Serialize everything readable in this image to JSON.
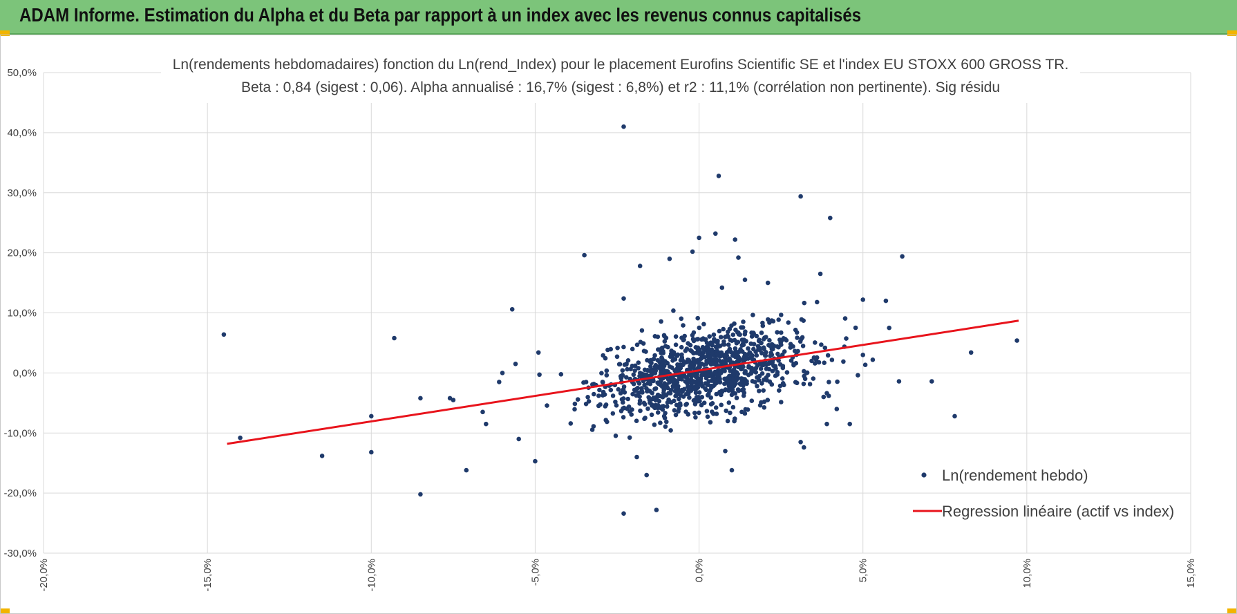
{
  "header": {
    "title": "ADAM Informe. Estimation du Alpha et du Beta par rapport à un index avec les revenus connus capitalisés"
  },
  "colors": {
    "header_bg": "#7cc47a",
    "points": "#1f3a6b",
    "regression": "#e8141c",
    "grid": "#d9d9d9"
  },
  "chart_data": {
    "type": "scatter",
    "title": "Ln(rendements hebdomadaires) fonction du Ln(rend_Index) pour le placement Eurofins Scientific SE et l'index EU STOXX 600 GROSS TR.",
    "subtitle": "Beta : 0,84 (sigest : 0,06).  Alpha annualisé : 16,7% (sigest : 6,8%) et r2 : 11,1% (corrélation non pertinente). Sig résidu",
    "xlim": [
      -0.2,
      0.15
    ],
    "ylim": [
      -0.3,
      0.5
    ],
    "x_ticks": [
      -0.2,
      -0.15,
      -0.1,
      -0.05,
      0.0,
      0.05,
      0.1,
      0.15
    ],
    "x_tick_labels": [
      "-20,0%",
      "-15,0%",
      "-10,0%",
      "-5,0%",
      "0,0%",
      "5,0%",
      "10,0%",
      "15,0%"
    ],
    "y_ticks": [
      -0.3,
      -0.2,
      -0.1,
      0.0,
      0.1,
      0.2,
      0.3,
      0.4,
      0.5
    ],
    "y_tick_labels": [
      "-30,0%",
      "-20,0%",
      "-10,0%",
      "0,0%",
      "10,0%",
      "20,0%",
      "30,0%",
      "40,0%",
      "50,0%"
    ],
    "grid": true,
    "legend_position": "bottom-right",
    "legend": [
      "Ln(rendement hebdo)",
      "Regression linéaire (actif vs index)"
    ],
    "regression": {
      "name": "Regression linéaire (actif vs index)",
      "x": [
        -0.144,
        0.0975
      ],
      "y": [
        -0.118,
        0.087
      ]
    },
    "series": [
      {
        "name": "Ln(rendement hebdo)",
        "cluster": {
          "count": 1050,
          "seed": 7,
          "x_mean": 0.002,
          "x_std": 0.016,
          "y_intercept": 0.003,
          "beta": 0.84,
          "resid_std": 0.034
        },
        "points": [
          [
            -0.145,
            0.064
          ],
          [
            -0.14,
            -0.108
          ],
          [
            -0.115,
            -0.138
          ],
          [
            -0.1,
            -0.072
          ],
          [
            -0.1,
            -0.132
          ],
          [
            -0.093,
            0.058
          ],
          [
            -0.085,
            -0.042
          ],
          [
            -0.085,
            -0.202
          ],
          [
            -0.076,
            -0.042
          ],
          [
            -0.075,
            -0.045
          ],
          [
            -0.071,
            -0.162
          ],
          [
            -0.066,
            -0.065
          ],
          [
            -0.065,
            -0.085
          ],
          [
            -0.061,
            -0.015
          ],
          [
            -0.06,
            0.0
          ],
          [
            -0.057,
            0.106
          ],
          [
            -0.056,
            0.015
          ],
          [
            -0.055,
            -0.11
          ],
          [
            -0.05,
            -0.147
          ],
          [
            -0.049,
            0.034
          ],
          [
            -0.035,
            0.196
          ],
          [
            -0.023,
            0.41
          ],
          [
            -0.023,
            -0.234
          ],
          [
            -0.023,
            0.124
          ],
          [
            -0.019,
            -0.14
          ],
          [
            -0.018,
            0.178
          ],
          [
            -0.016,
            -0.17
          ],
          [
            -0.013,
            -0.228
          ],
          [
            -0.009,
            0.19
          ],
          [
            -0.002,
            0.202
          ],
          [
            0.0,
            0.225
          ],
          [
            0.005,
            0.232
          ],
          [
            0.006,
            0.328
          ],
          [
            0.007,
            0.142
          ],
          [
            0.008,
            -0.13
          ],
          [
            0.01,
            -0.162
          ],
          [
            0.011,
            0.222
          ],
          [
            0.012,
            0.192
          ],
          [
            0.014,
            0.155
          ],
          [
            0.021,
            0.15
          ],
          [
            0.031,
            0.294
          ],
          [
            0.031,
            -0.115
          ],
          [
            0.032,
            -0.124
          ],
          [
            0.036,
            0.118
          ],
          [
            0.037,
            0.165
          ],
          [
            0.038,
            -0.04
          ],
          [
            0.039,
            -0.085
          ],
          [
            0.04,
            0.258
          ],
          [
            0.042,
            -0.06
          ],
          [
            0.046,
            -0.085
          ],
          [
            0.05,
            0.122
          ],
          [
            0.05,
            0.03
          ],
          [
            0.053,
            0.022
          ],
          [
            0.057,
            0.12
          ],
          [
            0.058,
            0.075
          ],
          [
            0.061,
            -0.014
          ],
          [
            0.062,
            0.194
          ],
          [
            0.071,
            -0.014
          ],
          [
            0.078,
            -0.072
          ],
          [
            0.083,
            0.034
          ],
          [
            0.097,
            0.054
          ]
        ]
      }
    ]
  }
}
